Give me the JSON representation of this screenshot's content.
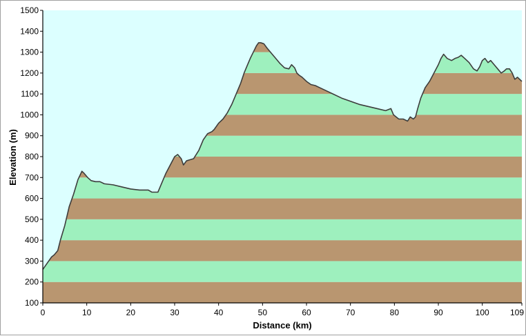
{
  "chart_data": {
    "type": "area",
    "xlabel": "Distance  (km)",
    "ylabel": "Elevation  (m)",
    "xlim": [
      0,
      109
    ],
    "ylim": [
      100,
      1500
    ],
    "x_ticks": [
      0,
      10,
      20,
      30,
      40,
      50,
      60,
      70,
      80,
      90,
      100,
      109
    ],
    "y_ticks": [
      100,
      200,
      300,
      400,
      500,
      600,
      700,
      800,
      900,
      1000,
      1100,
      1200,
      1300,
      1400,
      1500
    ],
    "background_color": "#dcffff",
    "band_colors": [
      "#b99670",
      "#9ef0be"
    ],
    "line_color": "#3c3c3c",
    "grid": false,
    "series": [
      {
        "x": [
          0,
          1,
          2,
          2.6,
          3.4,
          4,
          5,
          6,
          7,
          8,
          8.9,
          9.4,
          10.2,
          11,
          12,
          13,
          14,
          16,
          18,
          20,
          22,
          24,
          24.8,
          25.5,
          26.2,
          27,
          28,
          29,
          30,
          30.7,
          31.5,
          32,
          32.7,
          33.5,
          34.3,
          35.5,
          36.5,
          37.5,
          38.5,
          39,
          40,
          41,
          42,
          43,
          44,
          45,
          45.8,
          46.6,
          47.2,
          47.9,
          48.6,
          49.1,
          49.6,
          50.3,
          51,
          52,
          53,
          54,
          55,
          56,
          56.6,
          57.3,
          57.8,
          58.3,
          59,
          60,
          61,
          62,
          63,
          64,
          66,
          68,
          70,
          72,
          74,
          76,
          78,
          79.2,
          79.8,
          80.4,
          81,
          82,
          83,
          83.6,
          84.3,
          84.8,
          85.3,
          86,
          87,
          88,
          89,
          90,
          90.6,
          91.2,
          92,
          93,
          93.8,
          94.5,
          95.2,
          96,
          97,
          98,
          98.8,
          99.4,
          100,
          100.6,
          101.3,
          101.9,
          102.7,
          103.5,
          104.3,
          105,
          105.5,
          106.2,
          106.8,
          107.4,
          108,
          108.5,
          109
        ],
        "y": [
          260,
          290,
          320,
          330,
          350,
          400,
          470,
          560,
          620,
          690,
          730,
          720,
          700,
          685,
          680,
          680,
          670,
          665,
          655,
          645,
          640,
          640,
          630,
          630,
          630,
          670,
          720,
          760,
          800,
          810,
          790,
          760,
          780,
          785,
          790,
          830,
          880,
          910,
          920,
          930,
          960,
          980,
          1010,
          1050,
          1100,
          1150,
          1200,
          1240,
          1270,
          1300,
          1330,
          1345,
          1345,
          1340,
          1320,
          1295,
          1270,
          1245,
          1225,
          1220,
          1240,
          1225,
          1200,
          1190,
          1180,
          1160,
          1145,
          1140,
          1130,
          1120,
          1100,
          1080,
          1065,
          1050,
          1040,
          1030,
          1020,
          1030,
          1000,
          990,
          980,
          980,
          970,
          990,
          980,
          990,
          1030,
          1080,
          1130,
          1160,
          1200,
          1240,
          1270,
          1290,
          1270,
          1260,
          1270,
          1275,
          1285,
          1270,
          1250,
          1220,
          1210,
          1230,
          1260,
          1270,
          1250,
          1260,
          1240,
          1220,
          1200,
          1210,
          1220,
          1220,
          1200,
          1170,
          1180,
          1170,
          1160
        ]
      }
    ]
  }
}
